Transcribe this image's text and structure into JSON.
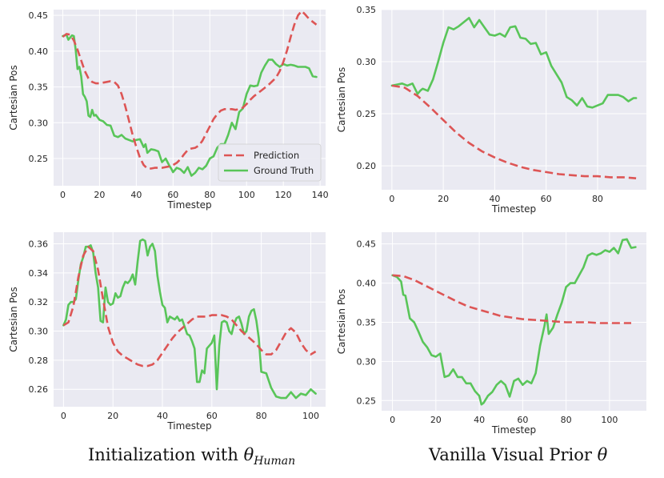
{
  "chart_data": [
    {
      "type": "line",
      "ylabel": "Cartesian Pos",
      "xlabel": "Timestep",
      "xlim": [
        -5,
        143
      ],
      "ylim": [
        0.212,
        0.458
      ],
      "xticks": [
        0,
        20,
        40,
        60,
        80,
        100,
        120,
        140
      ],
      "yticks": [
        0.25,
        0.3,
        0.35,
        0.4,
        0.45
      ],
      "ytick_labels": [
        "0.25",
        "0.30",
        "0.35",
        "0.40",
        "0.45"
      ],
      "grid": true,
      "legend": {
        "position": "lower-right",
        "entries": [
          "Prediction",
          "Ground Truth"
        ]
      },
      "series": [
        {
          "name": "Prediction",
          "color": "#dd5555",
          "style": "dashed",
          "x": [
            0,
            2,
            4,
            6,
            8,
            10,
            12,
            14,
            16,
            18,
            20,
            22,
            24,
            26,
            28,
            30,
            32,
            34,
            36,
            38,
            40,
            42,
            44,
            46,
            48,
            50,
            52,
            54,
            56,
            58,
            60,
            62,
            64,
            66,
            68,
            70,
            72,
            74,
            76,
            78,
            80,
            82,
            84,
            86,
            88,
            90,
            92,
            94,
            96,
            98,
            100,
            102,
            104,
            106,
            108,
            110,
            112,
            114,
            116,
            118,
            120,
            122,
            124,
            126,
            128,
            130,
            132,
            134,
            136,
            138
          ],
          "y": [
            0.42,
            0.424,
            0.423,
            0.415,
            0.402,
            0.387,
            0.372,
            0.362,
            0.357,
            0.355,
            0.355,
            0.356,
            0.357,
            0.358,
            0.357,
            0.352,
            0.34,
            0.323,
            0.303,
            0.283,
            0.266,
            0.251,
            0.241,
            0.236,
            0.236,
            0.237,
            0.237,
            0.237,
            0.238,
            0.239,
            0.241,
            0.244,
            0.249,
            0.256,
            0.262,
            0.264,
            0.265,
            0.268,
            0.275,
            0.285,
            0.295,
            0.305,
            0.312,
            0.317,
            0.319,
            0.319,
            0.319,
            0.318,
            0.319,
            0.321,
            0.326,
            0.332,
            0.337,
            0.341,
            0.345,
            0.349,
            0.353,
            0.358,
            0.363,
            0.372,
            0.385,
            0.401,
            0.42,
            0.437,
            0.45,
            0.456,
            0.451,
            0.445,
            0.441,
            0.437
          ]
        },
        {
          "name": "Ground Truth",
          "color": "#59c559",
          "style": "solid",
          "x": [
            0,
            2,
            3,
            4,
            5,
            6,
            7,
            8,
            9,
            10,
            11,
            12,
            13,
            14,
            15,
            16,
            17,
            18,
            20,
            22,
            24,
            26,
            28,
            30,
            32,
            34,
            36,
            38,
            40,
            42,
            44,
            45,
            46,
            48,
            50,
            52,
            54,
            56,
            58,
            59,
            60,
            62,
            64,
            66,
            68,
            70,
            72,
            74,
            76,
            78,
            80,
            82,
            84,
            86,
            88,
            90,
            92,
            94,
            96,
            98,
            100,
            102,
            104,
            106,
            108,
            110,
            112,
            114,
            116,
            118,
            120,
            122,
            124,
            126,
            128,
            130,
            132,
            134,
            136,
            138
          ],
          "y": [
            0.421,
            0.423,
            0.416,
            0.419,
            0.422,
            0.421,
            0.402,
            0.375,
            0.378,
            0.365,
            0.34,
            0.336,
            0.33,
            0.31,
            0.308,
            0.318,
            0.31,
            0.311,
            0.304,
            0.302,
            0.297,
            0.296,
            0.282,
            0.28,
            0.283,
            0.278,
            0.276,
            0.274,
            0.276,
            0.277,
            0.266,
            0.27,
            0.258,
            0.263,
            0.262,
            0.26,
            0.245,
            0.25,
            0.24,
            0.236,
            0.231,
            0.237,
            0.235,
            0.23,
            0.238,
            0.226,
            0.23,
            0.237,
            0.235,
            0.24,
            0.25,
            0.253,
            0.265,
            0.27,
            0.27,
            0.283,
            0.3,
            0.291,
            0.315,
            0.32,
            0.34,
            0.352,
            0.351,
            0.352,
            0.37,
            0.38,
            0.388,
            0.388,
            0.382,
            0.378,
            0.382,
            0.38,
            0.381,
            0.38,
            0.378,
            0.378,
            0.378,
            0.376,
            0.365,
            0.364
          ]
        }
      ]
    },
    {
      "type": "line",
      "ylabel": "Cartesian Pos",
      "xlabel": "Timestep",
      "xlim": [
        -4,
        99
      ],
      "ylim": [
        0.177,
        0.35
      ],
      "xticks": [
        0,
        20,
        40,
        60,
        80
      ],
      "yticks": [
        0.2,
        0.25,
        0.3,
        0.35
      ],
      "ytick_labels": [
        "0.20",
        "0.25",
        "0.30",
        "0.35"
      ],
      "grid": true,
      "series": [
        {
          "name": "Prediction",
          "color": "#dd5555",
          "style": "dashed",
          "x": [
            0,
            5,
            10,
            15,
            20,
            25,
            30,
            35,
            40,
            45,
            50,
            55,
            60,
            65,
            70,
            75,
            80,
            85,
            90,
            95
          ],
          "y": [
            0.277,
            0.275,
            0.267,
            0.256,
            0.244,
            0.232,
            0.222,
            0.214,
            0.208,
            0.203,
            0.199,
            0.196,
            0.194,
            0.192,
            0.191,
            0.19,
            0.19,
            0.189,
            0.189,
            0.188
          ]
        },
        {
          "name": "Ground Truth",
          "color": "#59c559",
          "style": "solid",
          "x": [
            0,
            2,
            4,
            6,
            8,
            10,
            11,
            12,
            14,
            16,
            18,
            20,
            22,
            24,
            26,
            28,
            30,
            32,
            34,
            36,
            38,
            40,
            42,
            44,
            46,
            48,
            50,
            52,
            54,
            56,
            58,
            60,
            62,
            64,
            66,
            68,
            70,
            72,
            74,
            76,
            78,
            80,
            82,
            84,
            86,
            88,
            90,
            92,
            94,
            95
          ],
          "y": [
            0.277,
            0.278,
            0.279,
            0.277,
            0.279,
            0.269,
            0.272,
            0.274,
            0.272,
            0.283,
            0.3,
            0.318,
            0.333,
            0.331,
            0.334,
            0.338,
            0.342,
            0.333,
            0.34,
            0.333,
            0.326,
            0.325,
            0.327,
            0.324,
            0.333,
            0.334,
            0.323,
            0.322,
            0.317,
            0.318,
            0.307,
            0.309,
            0.296,
            0.288,
            0.28,
            0.266,
            0.263,
            0.258,
            0.265,
            0.257,
            0.256,
            0.258,
            0.26,
            0.268,
            0.268,
            0.268,
            0.266,
            0.262,
            0.265,
            0.265
          ]
        }
      ]
    },
    {
      "type": "line",
      "ylabel": "Cartesian Pos",
      "xlabel": "Timestep",
      "xlim": [
        -4,
        106
      ],
      "ylim": [
        0.248,
        0.368
      ],
      "xticks": [
        0,
        20,
        40,
        60,
        80,
        100
      ],
      "yticks": [
        0.26,
        0.28,
        0.3,
        0.32,
        0.34,
        0.36
      ],
      "ytick_labels": [
        "0.26",
        "0.28",
        "0.30",
        "0.32",
        "0.34",
        "0.36"
      ],
      "grid": true,
      "series": [
        {
          "name": "Prediction",
          "color": "#dd5555",
          "style": "dashed",
          "x": [
            0,
            2,
            4,
            6,
            8,
            10,
            12,
            14,
            16,
            18,
            20,
            22,
            24,
            26,
            28,
            30,
            32,
            34,
            36,
            38,
            40,
            42,
            44,
            46,
            48,
            50,
            52,
            54,
            56,
            58,
            60,
            62,
            64,
            66,
            68,
            70,
            72,
            74,
            76,
            78,
            80,
            82,
            84,
            86,
            88,
            90,
            92,
            94,
            96,
            98,
            100,
            102
          ],
          "y": [
            0.304,
            0.306,
            0.317,
            0.337,
            0.352,
            0.358,
            0.355,
            0.342,
            0.322,
            0.303,
            0.292,
            0.286,
            0.283,
            0.281,
            0.279,
            0.277,
            0.276,
            0.276,
            0.277,
            0.28,
            0.285,
            0.29,
            0.295,
            0.299,
            0.302,
            0.305,
            0.308,
            0.31,
            0.31,
            0.31,
            0.311,
            0.311,
            0.311,
            0.31,
            0.308,
            0.304,
            0.3,
            0.297,
            0.294,
            0.291,
            0.287,
            0.284,
            0.284,
            0.287,
            0.293,
            0.299,
            0.302,
            0.299,
            0.292,
            0.287,
            0.284,
            0.286
          ]
        },
        {
          "name": "Ground Truth",
          "color": "#59c559",
          "style": "solid",
          "x": [
            0,
            1,
            2,
            3,
            4,
            5,
            6,
            7,
            8,
            9,
            10,
            11,
            12,
            13,
            14,
            15,
            16,
            17,
            18,
            19,
            20,
            21,
            22,
            23,
            24,
            25,
            26,
            27,
            28,
            29,
            30,
            31,
            32,
            33,
            34,
            35,
            36,
            37,
            38,
            39,
            40,
            41,
            42,
            43,
            44,
            45,
            46,
            47,
            48,
            49,
            50,
            51,
            52,
            53,
            54,
            55,
            56,
            57,
            58,
            59,
            60,
            61,
            62,
            63,
            64,
            65,
            66,
            67,
            68,
            69,
            70,
            71,
            72,
            73,
            74,
            75,
            76,
            77,
            78,
            79,
            80,
            82,
            84,
            86,
            88,
            90,
            92,
            94,
            96,
            98,
            100,
            102
          ],
          "y": [
            0.304,
            0.308,
            0.318,
            0.32,
            0.32,
            0.322,
            0.335,
            0.346,
            0.351,
            0.358,
            0.358,
            0.359,
            0.354,
            0.34,
            0.33,
            0.307,
            0.306,
            0.33,
            0.32,
            0.318,
            0.319,
            0.326,
            0.323,
            0.324,
            0.33,
            0.334,
            0.333,
            0.335,
            0.339,
            0.332,
            0.348,
            0.362,
            0.363,
            0.362,
            0.352,
            0.358,
            0.36,
            0.355,
            0.338,
            0.327,
            0.318,
            0.316,
            0.306,
            0.31,
            0.309,
            0.308,
            0.31,
            0.307,
            0.308,
            0.303,
            0.298,
            0.297,
            0.293,
            0.288,
            0.265,
            0.265,
            0.273,
            0.271,
            0.288,
            0.29,
            0.292,
            0.297,
            0.26,
            0.29,
            0.306,
            0.307,
            0.306,
            0.3,
            0.298,
            0.305,
            0.309,
            0.31,
            0.305,
            0.298,
            0.3,
            0.31,
            0.314,
            0.315,
            0.307,
            0.295,
            0.272,
            0.271,
            0.261,
            0.255,
            0.254,
            0.254,
            0.258,
            0.254,
            0.257,
            0.256,
            0.26,
            0.257
          ]
        }
      ]
    },
    {
      "type": "line",
      "ylabel": "Cartesian Pos",
      "xlabel": "Timestep",
      "xlim": [
        -5,
        117
      ],
      "ylim": [
        0.237,
        0.465
      ],
      "xticks": [
        0,
        20,
        40,
        60,
        80,
        100
      ],
      "yticks": [
        0.25,
        0.3,
        0.35,
        0.4,
        0.45
      ],
      "ytick_labels": [
        "0.25",
        "0.30",
        "0.35",
        "0.40",
        "0.45"
      ],
      "grid": true,
      "series": [
        {
          "name": "Prediction",
          "color": "#dd5555",
          "style": "dashed",
          "x": [
            0,
            5,
            10,
            15,
            20,
            25,
            30,
            35,
            40,
            45,
            50,
            55,
            60,
            65,
            70,
            75,
            80,
            85,
            90,
            95,
            100,
            105,
            110
          ],
          "y": [
            0.41,
            0.409,
            0.404,
            0.397,
            0.39,
            0.383,
            0.376,
            0.37,
            0.366,
            0.362,
            0.358,
            0.356,
            0.354,
            0.353,
            0.352,
            0.351,
            0.35,
            0.35,
            0.35,
            0.349,
            0.349,
            0.349,
            0.349
          ]
        },
        {
          "name": "Ground Truth",
          "color": "#59c559",
          "style": "solid",
          "x": [
            0,
            2,
            4,
            5,
            6,
            8,
            10,
            12,
            14,
            16,
            18,
            20,
            22,
            24,
            26,
            28,
            30,
            32,
            34,
            36,
            38,
            40,
            41,
            42,
            44,
            46,
            48,
            50,
            52,
            54,
            56,
            58,
            60,
            62,
            64,
            66,
            68,
            70,
            71,
            72,
            74,
            76,
            78,
            80,
            82,
            84,
            86,
            88,
            90,
            92,
            94,
            96,
            98,
            100,
            102,
            104,
            106,
            108,
            110,
            112
          ],
          "y": [
            0.41,
            0.408,
            0.402,
            0.385,
            0.384,
            0.355,
            0.35,
            0.338,
            0.325,
            0.318,
            0.308,
            0.306,
            0.31,
            0.28,
            0.282,
            0.29,
            0.28,
            0.28,
            0.272,
            0.272,
            0.262,
            0.256,
            0.245,
            0.247,
            0.256,
            0.261,
            0.27,
            0.275,
            0.27,
            0.255,
            0.275,
            0.278,
            0.27,
            0.275,
            0.272,
            0.285,
            0.32,
            0.345,
            0.36,
            0.335,
            0.343,
            0.36,
            0.375,
            0.395,
            0.4,
            0.4,
            0.41,
            0.42,
            0.435,
            0.438,
            0.436,
            0.438,
            0.442,
            0.44,
            0.445,
            0.438,
            0.455,
            0.456,
            0.445,
            0.446
          ]
        }
      ]
    }
  ],
  "captions": {
    "left": {
      "prefix": "Initialization with ",
      "theta": "θ",
      "sub": "Human"
    },
    "right": {
      "prefix": "Vanilla Visual Prior ",
      "theta": "θ"
    }
  }
}
